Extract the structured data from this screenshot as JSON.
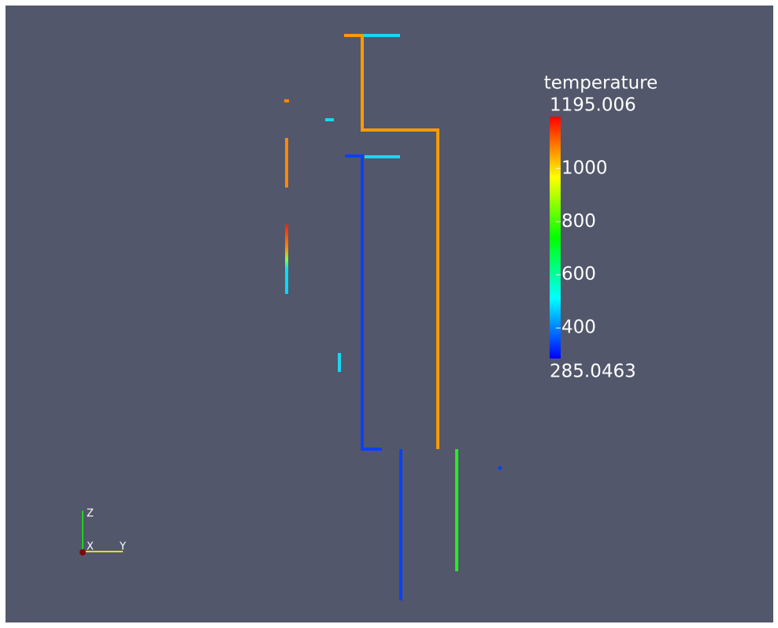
{
  "colorbar": {
    "title": "temperature",
    "range": [
      285.0463,
      1195.006
    ],
    "ticks": [
      1000,
      800,
      600,
      400
    ]
  },
  "orientation_axes": {
    "z": "Z",
    "x": "X",
    "y": "Y"
  }
}
